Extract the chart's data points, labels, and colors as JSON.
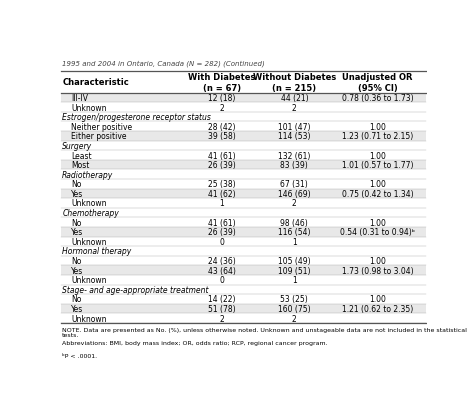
{
  "title": "1995 and 2004 in Ontario, Canada (N = 282) (Continued)",
  "col_headers": [
    "Characteristic",
    "With Diabetes\n(n = 67)",
    "Without Diabetes\n(n = 215)",
    "Unadjusted OR\n(95% CI)"
  ],
  "rows": [
    {
      "type": "data",
      "label": "III-IV",
      "col1": "12 (18)",
      "col2": "44 (21)",
      "col3": "0.78 (0.36 to 1.73)",
      "shade": true
    },
    {
      "type": "data",
      "label": "Unknown",
      "col1": "2",
      "col2": "2",
      "col3": "",
      "shade": false
    },
    {
      "type": "section",
      "label": "Estrogen/progesterone receptor status"
    },
    {
      "type": "data",
      "label": "Neither positive",
      "col1": "28 (42)",
      "col2": "101 (47)",
      "col3": "1.00",
      "shade": false
    },
    {
      "type": "data",
      "label": "Either positive",
      "col1": "39 (58)",
      "col2": "114 (53)",
      "col3": "1.23 (0.71 to 2.15)",
      "shade": true
    },
    {
      "type": "section",
      "label": "Surgery"
    },
    {
      "type": "data",
      "label": "Least",
      "col1": "41 (61)",
      "col2": "132 (61)",
      "col3": "1.00",
      "shade": false
    },
    {
      "type": "data",
      "label": "Most",
      "col1": "26 (39)",
      "col2": "83 (39)",
      "col3": "1.01 (0.57 to 1.77)",
      "shade": true
    },
    {
      "type": "section",
      "label": "Radiotherapy"
    },
    {
      "type": "data",
      "label": "No",
      "col1": "25 (38)",
      "col2": "67 (31)",
      "col3": "1.00",
      "shade": false
    },
    {
      "type": "data",
      "label": "Yes",
      "col1": "41 (62)",
      "col2": "146 (69)",
      "col3": "0.75 (0.42 to 1.34)",
      "shade": true
    },
    {
      "type": "data",
      "label": "Unknown",
      "col1": "1",
      "col2": "2",
      "col3": "",
      "shade": false
    },
    {
      "type": "section",
      "label": "Chemotherapy"
    },
    {
      "type": "data",
      "label": "No",
      "col1": "41 (61)",
      "col2": "98 (46)",
      "col3": "1.00",
      "shade": false
    },
    {
      "type": "data",
      "label": "Yes",
      "col1": "26 (39)",
      "col2": "116 (54)",
      "col3": "0.54 (0.31 to 0.94)ᵇ",
      "shade": true
    },
    {
      "type": "data",
      "label": "Unknown",
      "col1": "0",
      "col2": "1",
      "col3": "",
      "shade": false
    },
    {
      "type": "section",
      "label": "Hormonal therapy"
    },
    {
      "type": "data",
      "label": "No",
      "col1": "24 (36)",
      "col2": "105 (49)",
      "col3": "1.00",
      "shade": false
    },
    {
      "type": "data",
      "label": "Yes",
      "col1": "43 (64)",
      "col2": "109 (51)",
      "col3": "1.73 (0.98 to 3.04)",
      "shade": true
    },
    {
      "type": "data",
      "label": "Unknown",
      "col1": "0",
      "col2": "1",
      "col3": "",
      "shade": false
    },
    {
      "type": "section",
      "label": "Stage- and age-appropriate treatment"
    },
    {
      "type": "data",
      "label": "No",
      "col1": "14 (22)",
      "col2": "53 (25)",
      "col3": "1.00",
      "shade": false
    },
    {
      "type": "data",
      "label": "Yes",
      "col1": "51 (78)",
      "col2": "160 (75)",
      "col3": "1.21 (0.62 to 2.35)",
      "shade": true
    },
    {
      "type": "data",
      "label": "Unknown",
      "col1": "2",
      "col2": "2",
      "col3": "",
      "shade": false
    }
  ],
  "footnote1": "NOTE. Data are presented as No. (%), unless otherwise noted. Unknown and unstageable data are not included in the statistical tests.",
  "footnote2": "Abbreviations: BMI, body mass index; OR, odds ratio; RCP, regional cancer program.",
  "footnote3": "ᵇP < .0001.",
  "bg_shade": "#e8e8e8",
  "section_bg": "#ffffff",
  "line_color": "#aaaaaa",
  "border_color": "#555555",
  "font_size": 5.5,
  "header_font_size": 6.0,
  "title_font_size": 5.0,
  "footnote_font_size": 4.5
}
